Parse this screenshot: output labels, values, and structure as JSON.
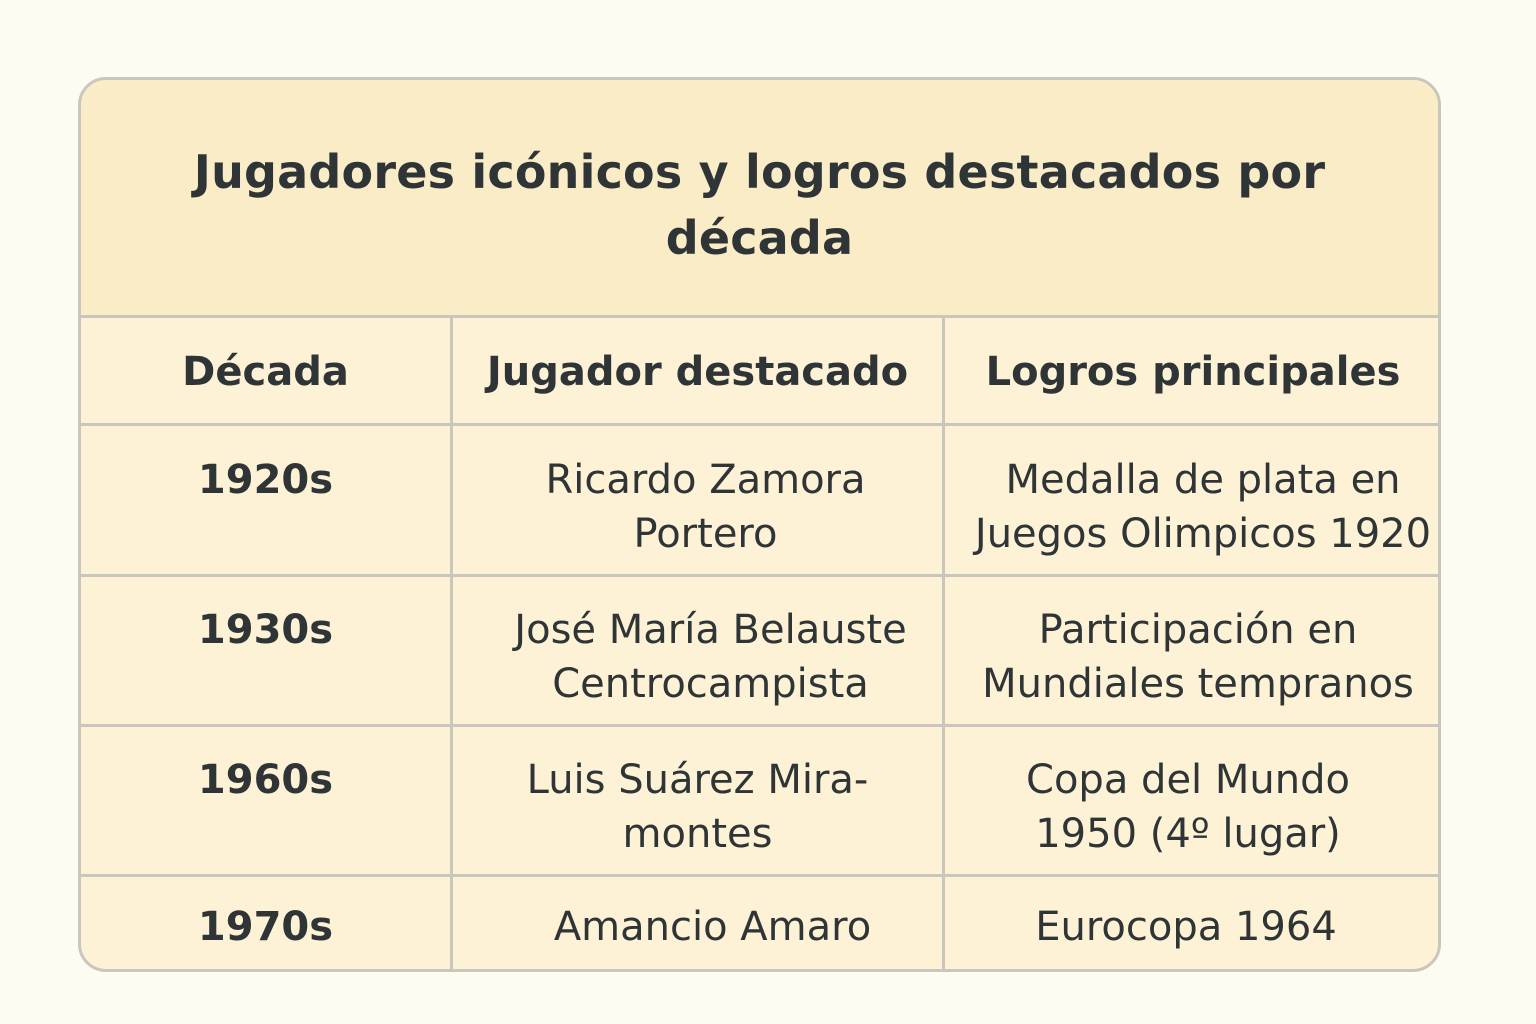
{
  "table": {
    "title": "Jugadores icónicos y logros destacados por década",
    "headers": [
      "Década",
      "Jugador destacado",
      "Logros principales"
    ],
    "rows": [
      {
        "decade": "1920s",
        "player": "Ricardo Zamora\nPortero",
        "achievement": "Medalla de plata en\nJuegos Olimpicos 1920"
      },
      {
        "decade": "1930s",
        "player": "José María Belauste\nCentrocampista",
        "achievement": "Participación en\nMundiales tempranos"
      },
      {
        "decade": "1960s",
        "player": "Luis Suárez Mira-\nmontes",
        "achievement": "Copa del Mundo\n1950 (4º lugar)"
      },
      {
        "decade": "1970s",
        "player": "Amancio Amaro",
        "achievement": "Eurocopa 1964"
      }
    ]
  }
}
